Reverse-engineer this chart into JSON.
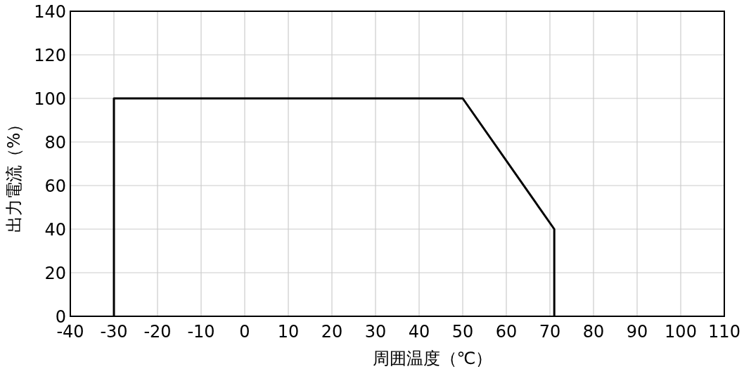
{
  "chart_data": {
    "type": "line",
    "xlabel": "周囲温度（℃）",
    "ylabel": "出力電流（%）",
    "x": [
      -30,
      -30,
      50,
      71,
      71
    ],
    "series": [
      {
        "color": "#000000",
        "values": [
          0,
          100,
          100,
          40,
          0
        ]
      }
    ],
    "xlim": [
      -40,
      110
    ],
    "xticks": [
      {
        "value": -40,
        "label": "-40"
      },
      {
        "value": -30,
        "label": "-30"
      },
      {
        "value": -20,
        "label": "-20"
      },
      {
        "value": -10,
        "label": "-10"
      },
      0,
      10,
      20,
      30,
      40,
      50,
      60,
      70,
      80,
      90,
      100,
      110
    ],
    "ylim": [
      0,
      140
    ],
    "yticks": [
      0,
      20,
      40,
      60,
      80,
      100,
      120,
      140
    ],
    "grid": true,
    "marker": "none",
    "line_style": "solid"
  }
}
